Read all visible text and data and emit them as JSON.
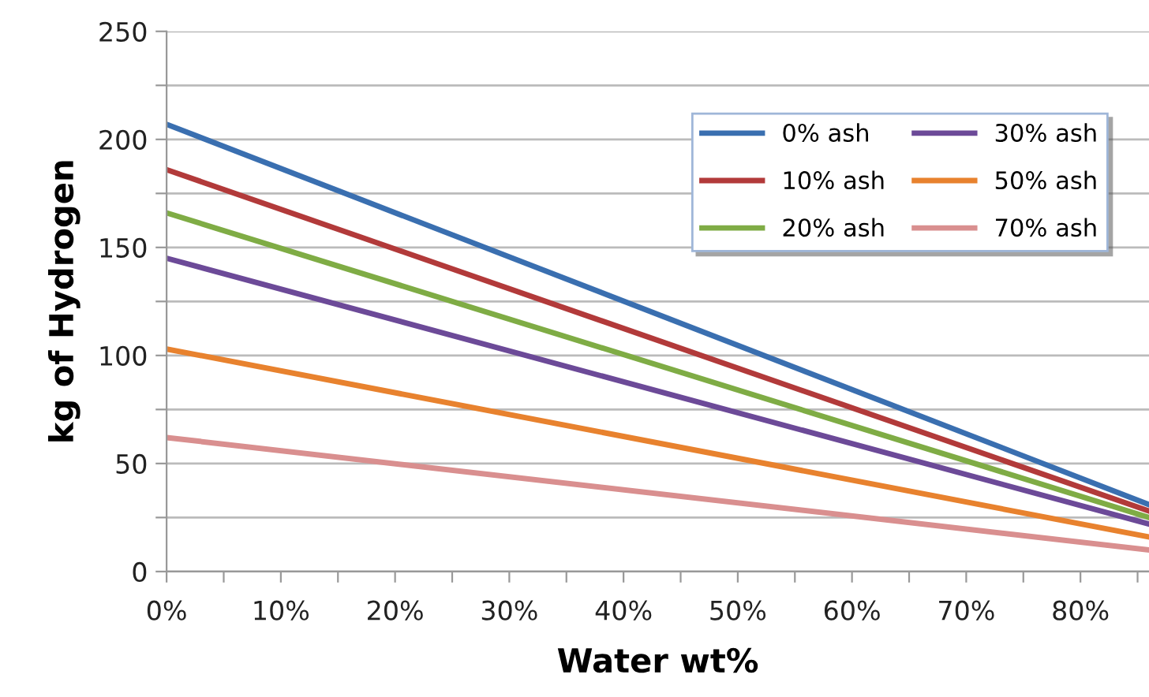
{
  "chart_data": {
    "type": "line",
    "xlabel": "Water wt%",
    "ylabel": "kg of Hydrogen",
    "xlim": [
      0,
      86
    ],
    "ylim": [
      0,
      250
    ],
    "xticks": [
      {
        "value": 0,
        "label": "0%"
      },
      {
        "value": 5,
        "label": null
      },
      {
        "value": 10,
        "label": "10%"
      },
      {
        "value": 15,
        "label": null
      },
      {
        "value": 20,
        "label": "20%"
      },
      {
        "value": 25,
        "label": null
      },
      {
        "value": 30,
        "label": "30%"
      },
      {
        "value": 35,
        "label": null
      },
      {
        "value": 40,
        "label": "40%"
      },
      {
        "value": 45,
        "label": null
      },
      {
        "value": 50,
        "label": "50%"
      },
      {
        "value": 55,
        "label": null
      },
      {
        "value": 60,
        "label": "60%"
      },
      {
        "value": 65,
        "label": null
      },
      {
        "value": 70,
        "label": "70%"
      },
      {
        "value": 75,
        "label": null
      },
      {
        "value": 80,
        "label": "80%"
      },
      {
        "value": 85,
        "label": null
      }
    ],
    "yticks": [
      0,
      {
        "value": 25,
        "label": null
      },
      50,
      {
        "value": 75,
        "label": null
      },
      100,
      {
        "value": 125,
        "label": null
      },
      150,
      {
        "value": 175,
        "label": null
      },
      200,
      {
        "value": 225,
        "label": null
      },
      250
    ],
    "grid": "y",
    "legend": "top right",
    "marker": "none",
    "line_style": "solid",
    "x": [
      0,
      86
    ],
    "series": [
      {
        "name": "0% ash",
        "color": "#3a6fb0",
        "values": [
          207,
          31
        ]
      },
      {
        "name": "10% ash",
        "color": "#b23a3a",
        "values": [
          186,
          28
        ]
      },
      {
        "name": "20% ash",
        "color": "#7fac45",
        "values": [
          166,
          25
        ]
      },
      {
        "name": "30% ash",
        "color": "#6c4a98",
        "values": [
          145,
          22
        ]
      },
      {
        "name": "50% ash",
        "color": "#e8822e",
        "values": [
          103,
          16
        ]
      },
      {
        "name": "70% ash",
        "color": "#d98f8f",
        "values": [
          62,
          10
        ]
      }
    ]
  }
}
